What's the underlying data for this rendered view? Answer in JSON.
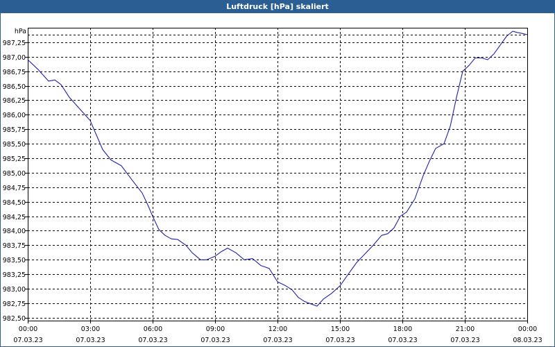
{
  "title": "Luftdruck [hPa] skaliert",
  "colors": {
    "title_bar": "#2b5f93",
    "title_text": "#ffffff",
    "series": "#1f1fa8",
    "grid": "#000000"
  },
  "chart_data": {
    "type": "line",
    "title": "Luftdruck [hPa] skaliert",
    "ylabel": "hPa",
    "xlabel": "",
    "grid": true,
    "ylim": [
      982.45,
      987.5
    ],
    "xlim": [
      0,
      24
    ],
    "yticks": [
      982.5,
      982.75,
      983.0,
      983.25,
      983.5,
      983.75,
      984.0,
      984.25,
      984.5,
      984.75,
      985.0,
      985.25,
      985.5,
      985.75,
      986.0,
      986.25,
      986.5,
      986.75,
      987.0,
      987.25
    ],
    "ytick_labels": [
      "982,50",
      "982,75",
      "983,00",
      "983,25",
      "983,50",
      "983,75",
      "984,00",
      "984,25",
      "984,50",
      "984,75",
      "985,00",
      "985,25",
      "985,50",
      "985,75",
      "986,00",
      "986,25",
      "986,50",
      "986,75",
      "987,00",
      "987,25"
    ],
    "xticks": [
      {
        "x": 0,
        "time": "00:00",
        "date": "07.03.23"
      },
      {
        "x": 3,
        "time": "03:00",
        "date": "07.03.23"
      },
      {
        "x": 6,
        "time": "06:00",
        "date": "07.03.23"
      },
      {
        "x": 9,
        "time": "09:00",
        "date": "07.03.23"
      },
      {
        "x": 12,
        "time": "12:00",
        "date": "07.03.23"
      },
      {
        "x": 15,
        "time": "15:00",
        "date": "07.03.23"
      },
      {
        "x": 18,
        "time": "18:00",
        "date": "07.03.23"
      },
      {
        "x": 21,
        "time": "21:00",
        "date": "07.03.23"
      },
      {
        "x": 24,
        "time": "00:00",
        "date": "08.03.23"
      }
    ],
    "series": [
      {
        "name": "Luftdruck",
        "x": [
          0,
          0.5,
          1.0,
          1.3,
          1.6,
          2.0,
          2.5,
          2.8,
          3.0,
          3.3,
          3.6,
          4.0,
          4.5,
          5.0,
          5.5,
          5.8,
          6.0,
          6.3,
          6.6,
          6.9,
          7.2,
          7.6,
          7.9,
          8.3,
          8.6,
          9.0,
          9.3,
          9.6,
          10.0,
          10.4,
          10.8,
          11.2,
          11.6,
          12.0,
          12.4,
          12.7,
          13.0,
          13.3,
          13.6,
          13.9,
          14.2,
          14.6,
          15.0,
          15.4,
          15.8,
          16.2,
          16.6,
          17.0,
          17.3,
          17.6,
          17.9,
          18.2,
          18.6,
          19.0,
          19.3,
          19.6,
          20.0,
          20.3,
          20.6,
          20.9,
          21.2,
          21.5,
          21.8,
          22.1,
          22.4,
          22.7,
          23.0,
          23.3,
          23.5,
          23.8,
          24.0
        ],
        "values": [
          986.95,
          986.78,
          986.58,
          986.6,
          986.52,
          986.3,
          986.1,
          985.98,
          985.9,
          985.65,
          985.4,
          985.22,
          985.12,
          984.88,
          984.65,
          984.42,
          984.25,
          984.02,
          983.92,
          983.86,
          983.85,
          983.75,
          983.62,
          983.5,
          983.5,
          983.56,
          983.64,
          983.7,
          983.62,
          983.5,
          983.52,
          983.4,
          983.35,
          983.12,
          983.05,
          982.98,
          982.85,
          982.78,
          982.74,
          982.7,
          982.82,
          982.92,
          983.05,
          983.25,
          983.45,
          983.6,
          983.75,
          983.92,
          983.95,
          984.05,
          984.25,
          984.32,
          984.55,
          984.95,
          985.2,
          985.42,
          985.5,
          985.8,
          986.3,
          986.75,
          986.85,
          986.98,
          986.98,
          986.95,
          987.05,
          987.2,
          987.35,
          987.44,
          987.42,
          987.4,
          987.38
        ]
      }
    ]
  }
}
